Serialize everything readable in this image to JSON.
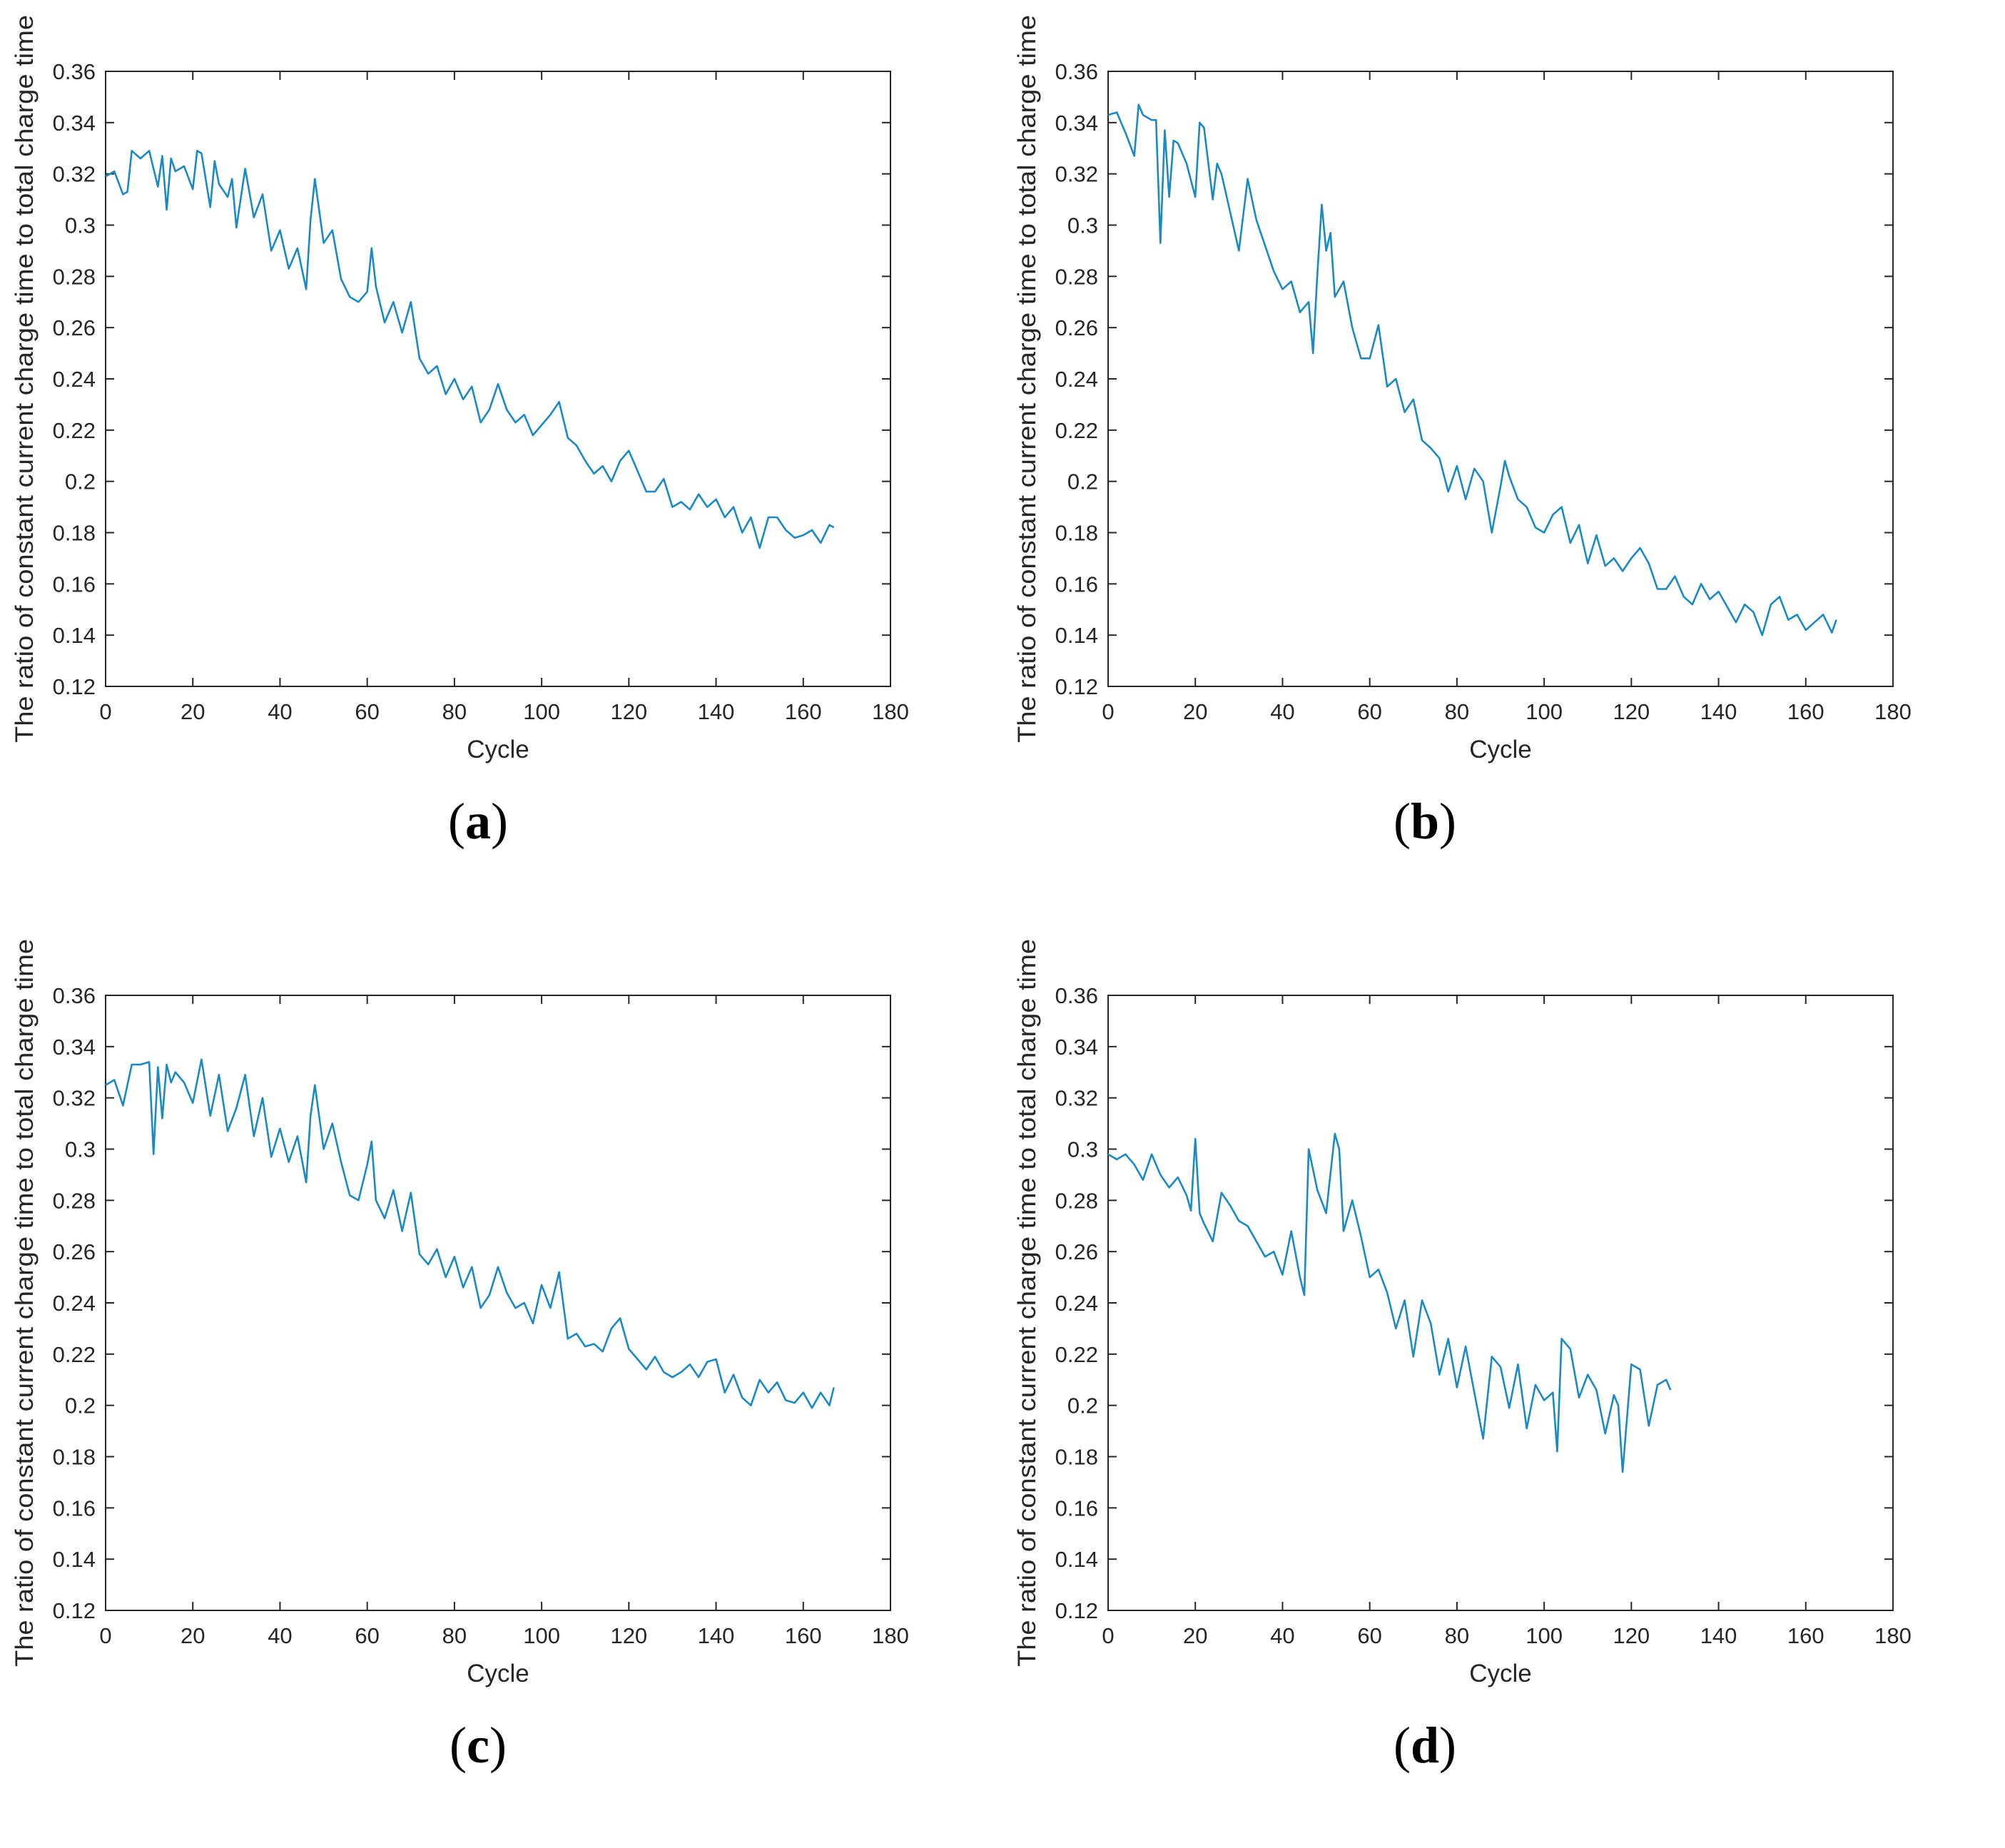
{
  "chart_data": [
    {
      "panel": "a",
      "caption": "a",
      "type": "line",
      "xlabel": "Cycle",
      "ylabel": "The ratio of constant current charge time to total charge time",
      "xlim": [
        0,
        180
      ],
      "ylim": [
        0.12,
        0.36
      ],
      "xticks": [
        "0",
        "20",
        "40",
        "60",
        "80",
        "100",
        "120",
        "140",
        "160",
        "180"
      ],
      "yticks": [
        "0.12",
        "0.14",
        "0.16",
        "0.18",
        "0.2",
        "0.22",
        "0.24",
        "0.26",
        "0.28",
        "0.3",
        "0.32",
        "0.34",
        "0.36"
      ],
      "color": "#1a8ac4",
      "x": [
        0,
        2,
        4,
        5,
        6,
        8,
        10,
        12,
        13,
        14,
        15,
        16,
        18,
        20,
        21,
        22,
        24,
        25,
        26,
        28,
        29,
        30,
        32,
        34,
        36,
        38,
        40,
        42,
        44,
        46,
        47,
        48,
        50,
        52,
        54,
        56,
        58,
        60,
        61,
        62,
        64,
        66,
        68,
        70,
        72,
        74,
        76,
        78,
        80,
        82,
        84,
        86,
        88,
        90,
        92,
        94,
        96,
        98,
        100,
        102,
        104,
        106,
        108,
        110,
        112,
        114,
        116,
        118,
        120,
        122,
        124,
        126,
        128,
        130,
        132,
        134,
        136,
        138,
        140,
        142,
        144,
        146,
        148,
        150,
        152,
        154,
        156,
        158,
        160,
        162,
        164,
        166,
        167
      ],
      "y": [
        0.319,
        0.321,
        0.312,
        0.313,
        0.329,
        0.326,
        0.329,
        0.315,
        0.327,
        0.306,
        0.326,
        0.321,
        0.323,
        0.314,
        0.329,
        0.328,
        0.307,
        0.325,
        0.316,
        0.311,
        0.318,
        0.299,
        0.322,
        0.303,
        0.312,
        0.29,
        0.298,
        0.283,
        0.291,
        0.275,
        0.302,
        0.318,
        0.293,
        0.298,
        0.279,
        0.272,
        0.27,
        0.274,
        0.291,
        0.276,
        0.262,
        0.27,
        0.258,
        0.27,
        0.248,
        0.242,
        0.245,
        0.234,
        0.24,
        0.232,
        0.237,
        0.223,
        0.228,
        0.238,
        0.228,
        0.223,
        0.226,
        0.218,
        0.222,
        0.226,
        0.231,
        0.217,
        0.214,
        0.208,
        0.203,
        0.206,
        0.2,
        0.208,
        0.212,
        0.204,
        0.196,
        0.196,
        0.201,
        0.19,
        0.192,
        0.189,
        0.195,
        0.19,
        0.193,
        0.186,
        0.19,
        0.18,
        0.186,
        0.174,
        0.186,
        0.186,
        0.181,
        0.178,
        0.179,
        0.181,
        0.176,
        0.183,
        0.182
      ]
    },
    {
      "panel": "b",
      "caption": "b",
      "type": "line",
      "xlabel": "Cycle",
      "ylabel": "The ratio of constant current charge time to total charge time",
      "xlim": [
        0,
        180
      ],
      "ylim": [
        0.12,
        0.36
      ],
      "xticks": [
        "0",
        "20",
        "40",
        "60",
        "80",
        "100",
        "120",
        "140",
        "160",
        "180"
      ],
      "yticks": [
        "0.12",
        "0.14",
        "0.16",
        "0.18",
        "0.2",
        "0.22",
        "0.24",
        "0.26",
        "0.28",
        "0.3",
        "0.32",
        "0.34",
        "0.36"
      ],
      "color": "#1a8ac4",
      "x": [
        0,
        2,
        4,
        6,
        7,
        8,
        10,
        11,
        12,
        13,
        14,
        15,
        16,
        18,
        20,
        21,
        22,
        24,
        25,
        26,
        28,
        30,
        32,
        33,
        34,
        36,
        38,
        40,
        42,
        44,
        46,
        47,
        48,
        49,
        50,
        51,
        52,
        54,
        56,
        58,
        60,
        62,
        64,
        66,
        68,
        70,
        72,
        74,
        76,
        78,
        80,
        82,
        84,
        86,
        88,
        90,
        91,
        92,
        94,
        96,
        98,
        100,
        102,
        104,
        106,
        108,
        110,
        112,
        114,
        116,
        118,
        120,
        122,
        124,
        126,
        128,
        130,
        132,
        134,
        136,
        138,
        140,
        142,
        144,
        146,
        148,
        150,
        152,
        154,
        156,
        158,
        160,
        162,
        164,
        166,
        167
      ],
      "y": [
        0.343,
        0.344,
        0.336,
        0.327,
        0.347,
        0.343,
        0.341,
        0.341,
        0.293,
        0.337,
        0.311,
        0.333,
        0.332,
        0.324,
        0.311,
        0.34,
        0.338,
        0.31,
        0.324,
        0.32,
        0.305,
        0.29,
        0.318,
        0.31,
        0.302,
        0.292,
        0.282,
        0.275,
        0.278,
        0.266,
        0.27,
        0.25,
        0.281,
        0.308,
        0.29,
        0.297,
        0.272,
        0.278,
        0.26,
        0.248,
        0.248,
        0.261,
        0.237,
        0.24,
        0.227,
        0.232,
        0.216,
        0.213,
        0.209,
        0.196,
        0.206,
        0.193,
        0.205,
        0.2,
        0.18,
        0.198,
        0.208,
        0.202,
        0.193,
        0.19,
        0.182,
        0.18,
        0.187,
        0.19,
        0.176,
        0.183,
        0.168,
        0.179,
        0.167,
        0.17,
        0.165,
        0.17,
        0.174,
        0.168,
        0.158,
        0.158,
        0.163,
        0.155,
        0.152,
        0.16,
        0.154,
        0.157,
        0.151,
        0.145,
        0.152,
        0.149,
        0.14,
        0.152,
        0.155,
        0.146,
        0.148,
        0.142,
        0.145,
        0.148,
        0.141,
        0.146
      ]
    },
    {
      "panel": "c",
      "caption": "c",
      "type": "line",
      "xlabel": "Cycle",
      "ylabel": "The ratio of constant current charge time to total charge time",
      "xlim": [
        0,
        180
      ],
      "ylim": [
        0.12,
        0.36
      ],
      "xticks": [
        "0",
        "20",
        "40",
        "60",
        "80",
        "100",
        "120",
        "140",
        "160",
        "180"
      ],
      "yticks": [
        "0.12",
        "0.14",
        "0.16",
        "0.18",
        "0.2",
        "0.22",
        "0.24",
        "0.26",
        "0.28",
        "0.3",
        "0.32",
        "0.34",
        "0.36"
      ],
      "color": "#1a8ac4",
      "x": [
        0,
        2,
        4,
        6,
        8,
        10,
        11,
        12,
        13,
        14,
        15,
        16,
        18,
        20,
        22,
        24,
        26,
        28,
        30,
        32,
        34,
        36,
        38,
        40,
        42,
        44,
        46,
        47,
        48,
        50,
        52,
        54,
        56,
        58,
        60,
        61,
        62,
        64,
        66,
        68,
        70,
        72,
        74,
        76,
        78,
        80,
        82,
        84,
        86,
        88,
        90,
        92,
        94,
        96,
        98,
        100,
        102,
        104,
        106,
        108,
        110,
        112,
        114,
        116,
        118,
        120,
        122,
        124,
        126,
        128,
        130,
        132,
        134,
        136,
        138,
        140,
        142,
        144,
        146,
        148,
        150,
        152,
        154,
        156,
        158,
        160,
        162,
        164,
        166,
        167
      ],
      "y": [
        0.325,
        0.327,
        0.317,
        0.333,
        0.333,
        0.334,
        0.298,
        0.332,
        0.312,
        0.333,
        0.326,
        0.33,
        0.326,
        0.318,
        0.335,
        0.313,
        0.329,
        0.307,
        0.316,
        0.329,
        0.305,
        0.32,
        0.297,
        0.308,
        0.295,
        0.305,
        0.287,
        0.313,
        0.325,
        0.3,
        0.31,
        0.295,
        0.282,
        0.28,
        0.294,
        0.303,
        0.28,
        0.273,
        0.284,
        0.268,
        0.283,
        0.259,
        0.255,
        0.261,
        0.25,
        0.258,
        0.246,
        0.254,
        0.238,
        0.243,
        0.254,
        0.244,
        0.238,
        0.24,
        0.232,
        0.247,
        0.238,
        0.252,
        0.226,
        0.228,
        0.223,
        0.224,
        0.221,
        0.23,
        0.234,
        0.222,
        0.218,
        0.214,
        0.219,
        0.213,
        0.211,
        0.213,
        0.216,
        0.211,
        0.217,
        0.218,
        0.205,
        0.212,
        0.203,
        0.2,
        0.21,
        0.205,
        0.209,
        0.202,
        0.201,
        0.205,
        0.199,
        0.205,
        0.2,
        0.207
      ]
    },
    {
      "panel": "d",
      "caption": "d",
      "type": "line",
      "xlabel": "Cycle",
      "ylabel": "The ratio of constant current charge time to total charge time",
      "xlim": [
        0,
        180
      ],
      "ylim": [
        0.12,
        0.36
      ],
      "xticks": [
        "0",
        "20",
        "40",
        "60",
        "80",
        "100",
        "120",
        "140",
        "160",
        "180"
      ],
      "yticks": [
        "0.12",
        "0.14",
        "0.16",
        "0.18",
        "0.2",
        "0.22",
        "0.24",
        "0.26",
        "0.28",
        "0.3",
        "0.32",
        "0.34",
        "0.36"
      ],
      "color": "#1a8ac4",
      "x": [
        0,
        2,
        4,
        6,
        8,
        10,
        12,
        14,
        16,
        18,
        19,
        20,
        21,
        22,
        24,
        26,
        28,
        30,
        32,
        34,
        36,
        38,
        40,
        42,
        44,
        45,
        46,
        48,
        50,
        52,
        53,
        54,
        56,
        58,
        60,
        62,
        64,
        66,
        68,
        70,
        72,
        74,
        76,
        78,
        80,
        82,
        84,
        86,
        88,
        90,
        92,
        94,
        96,
        98,
        100,
        102,
        103,
        104,
        106,
        108,
        110,
        112,
        114,
        116,
        117,
        118,
        120,
        122,
        124,
        126,
        128,
        129
      ],
      "y": [
        0.298,
        0.296,
        0.298,
        0.294,
        0.288,
        0.298,
        0.29,
        0.285,
        0.289,
        0.282,
        0.276,
        0.304,
        0.275,
        0.271,
        0.264,
        0.283,
        0.278,
        0.272,
        0.27,
        0.264,
        0.258,
        0.26,
        0.251,
        0.268,
        0.25,
        0.243,
        0.3,
        0.284,
        0.275,
        0.306,
        0.3,
        0.268,
        0.28,
        0.266,
        0.25,
        0.253,
        0.244,
        0.23,
        0.241,
        0.219,
        0.241,
        0.232,
        0.212,
        0.226,
        0.207,
        0.223,
        0.205,
        0.187,
        0.219,
        0.215,
        0.199,
        0.216,
        0.191,
        0.208,
        0.202,
        0.205,
        0.182,
        0.226,
        0.222,
        0.203,
        0.212,
        0.206,
        0.189,
        0.204,
        0.2,
        0.174,
        0.216,
        0.214,
        0.192,
        0.208,
        0.21,
        0.206
      ]
    }
  ]
}
